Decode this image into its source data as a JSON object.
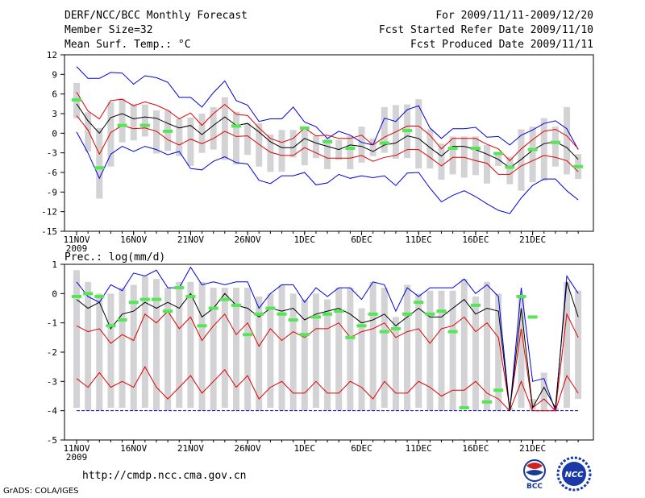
{
  "header": {
    "title": "DERF/NCC/BCC Monthly Forecast",
    "member_size": "Member Size=32",
    "variable": "Mean Surf. Temp.: °C",
    "period": "For 2009/11/11-2009/12/20",
    "started": "Fcst Started Refer Date 2009/11/10",
    "produced": "Fcst Produced Date 2009/11/11"
  },
  "footer": {
    "url": "http://cmdp.ncc.cma.gov.cn",
    "grads": "GrADS: COLA/IGES",
    "logo_bcc": "BCC",
    "logo_ncc": "NCC"
  },
  "colors": {
    "box": "#d3d3d5",
    "mean": "#000000",
    "envelope": "#0000e0",
    "spread": "#e00000",
    "obs": "#55e655",
    "floor": "#0000e0"
  },
  "chart_data": [
    {
      "type": "line",
      "title": "Mean Surf. Temp.: °C",
      "x_labels": [
        "11NOV",
        "16NOV",
        "21NOV",
        "26NOV",
        "1DEC",
        "6DEC",
        "11DEC",
        "16DEC",
        "21DEC"
      ],
      "x_sublabel": "2009",
      "ylim": [
        -15,
        12
      ],
      "y_ticks": [
        -15,
        -12,
        -9,
        -6,
        -3,
        0,
        3,
        6,
        9,
        12
      ],
      "series": [
        {
          "name": "ensemble_mean",
          "values": [
            4.5,
            1.9,
            0.0,
            2.4,
            3.0,
            2.2,
            2.5,
            2.3,
            1.5,
            0.8,
            1.2,
            -0.2,
            1.2,
            2.5,
            1.2,
            1.5,
            0.2,
            -1.3,
            -2.2,
            -2.2,
            -0.8,
            -1.5,
            -2.0,
            -2.5,
            -1.8,
            -2.0,
            -2.8,
            -1.8,
            -1.5,
            -0.4,
            -0.8,
            -2.2,
            -3.5,
            -2.0,
            -2.0,
            -2.5,
            -3.2,
            -4.0,
            -5.3,
            -4.0,
            -2.6,
            -1.6,
            -1.3,
            -2.2,
            -4.0
          ]
        },
        {
          "name": "upper_envelope",
          "values": [
            10.2,
            8.4,
            8.4,
            9.3,
            9.2,
            7.5,
            8.8,
            8.5,
            7.8,
            5.5,
            5.5,
            4.0,
            6.2,
            8.0,
            5.0,
            4.3,
            1.8,
            2.2,
            2.2,
            4.0,
            1.7,
            1.0,
            -0.8,
            0.3,
            -0.3,
            -1.4,
            -1.8,
            2.3,
            1.8,
            3.6,
            4.2,
            0.8,
            -0.8,
            0.7,
            0.7,
            0.9,
            -0.6,
            -0.5,
            -1.8,
            -0.3,
            0.5,
            1.5,
            1.9,
            0.7,
            -2.5
          ]
        },
        {
          "name": "lower_envelope",
          "values": [
            0.2,
            -3.0,
            -6.9,
            -3.2,
            -2.0,
            -2.8,
            -2.0,
            -2.5,
            -3.3,
            -2.8,
            -5.4,
            -5.6,
            -4.3,
            -3.6,
            -4.5,
            -4.7,
            -7.2,
            -7.7,
            -6.5,
            -6.5,
            -6.0,
            -7.9,
            -7.6,
            -6.3,
            -6.9,
            -6.5,
            -6.8,
            -6.5,
            -8.0,
            -6.1,
            -6.0,
            -8.4,
            -10.5,
            -9.5,
            -8.8,
            -9.7,
            -10.8,
            -11.8,
            -12.3,
            -9.9,
            -8.0,
            -7.0,
            -7.0,
            -8.8,
            -10.2
          ]
        },
        {
          "name": "upper_spread",
          "values": [
            6.3,
            3.4,
            2.2,
            5.0,
            5.2,
            4.2,
            4.8,
            4.3,
            3.5,
            2.2,
            3.1,
            1.2,
            3.0,
            4.4,
            2.9,
            2.7,
            0.8,
            -0.8,
            -1.4,
            -0.8,
            0.8,
            -0.4,
            -0.3,
            -0.8,
            -0.8,
            -0.3,
            -1.8,
            -0.6,
            0.2,
            1.1,
            1.1,
            -0.3,
            -2.4,
            -0.8,
            -0.8,
            -0.8,
            -1.7,
            -2.4,
            -4.2,
            -2.4,
            -1.0,
            0.3,
            0.6,
            -0.4,
            -2.4
          ]
        },
        {
          "name": "lower_spread",
          "values": [
            2.7,
            0.5,
            -3.2,
            0.1,
            1.2,
            0.7,
            0.8,
            0.3,
            -1.0,
            -1.8,
            -0.9,
            -1.6,
            -0.8,
            0.3,
            -0.5,
            -0.4,
            -1.7,
            -2.9,
            -3.4,
            -3.4,
            -2.2,
            -3.0,
            -3.8,
            -3.8,
            -3.8,
            -3.4,
            -4.3,
            -3.7,
            -3.4,
            -2.5,
            -2.5,
            -3.7,
            -5.0,
            -3.7,
            -3.7,
            -4.2,
            -4.6,
            -6.3,
            -6.3,
            -5.0,
            -4.2,
            -3.4,
            -3.7,
            -4.2,
            -5.9
          ]
        },
        {
          "name": "box_top",
          "values": [
            7.7,
            3.2,
            0.8,
            4.8,
            5.3,
            4.5,
            4.4,
            3.5,
            3.5,
            2.2,
            2.4,
            3.0,
            4.0,
            5.5,
            3.3,
            1.6,
            1.5,
            -0.2,
            0.5,
            0.5,
            0.8,
            -0.4,
            -0.8,
            -1.0,
            -0.4,
            1.0,
            -0.8,
            4.0,
            4.3,
            4.4,
            5.2,
            0.6,
            -1.6,
            -0.5,
            -0.5,
            -0.5,
            -1.8,
            -3.1,
            -3.6,
            0.6,
            1.0,
            2.3,
            1.0,
            4.0,
            -3.2
          ]
        },
        {
          "name": "box_bottom",
          "values": [
            2.3,
            -2.8,
            -10.0,
            -5.1,
            -1.4,
            -1.1,
            -0.5,
            -3.1,
            -2.7,
            -3.5,
            -5.0,
            -3.0,
            -2.5,
            -4.1,
            -4.8,
            -3.3,
            -5.1,
            -5.9,
            -5.9,
            -3.7,
            -4.9,
            -3.8,
            -5.5,
            -4.1,
            -5.5,
            -4.5,
            -3.5,
            -3.0,
            -3.9,
            -3.8,
            -5.4,
            -5.4,
            -7.1,
            -6.3,
            -6.8,
            -6.4,
            -7.7,
            -5.0,
            -7.8,
            -8.8,
            -7.5,
            -7.3,
            -5.1,
            -6.3,
            -7.0
          ]
        },
        {
          "name": "observed",
          "values": [
            5.1,
            null,
            -5.3,
            null,
            1.2,
            null,
            1.2,
            null,
            0.3,
            null,
            null,
            null,
            null,
            null,
            1.1,
            null,
            null,
            null,
            null,
            null,
            0.8,
            null,
            -1.3,
            null,
            -2.3,
            null,
            null,
            -1.5,
            null,
            0.4,
            null,
            null,
            null,
            -2.3,
            null,
            -2.3,
            null,
            -3.1,
            -5.2,
            null,
            -2.5,
            null,
            -1.4,
            null,
            -5.1
          ]
        }
      ]
    },
    {
      "type": "line",
      "title": "Prec.: log(mm/d)",
      "x_labels": [
        "11NOV",
        "16NOV",
        "21NOV",
        "26NOV",
        "1DEC",
        "6DEC",
        "11DEC",
        "16DEC",
        "21DEC"
      ],
      "x_sublabel": "2009",
      "ylim": [
        -5,
        1
      ],
      "y_ticks": [
        -5,
        -4,
        -3,
        -2,
        -1,
        0,
        1
      ],
      "series": [
        {
          "name": "ensemble_mean",
          "values": [
            -0.2,
            -0.5,
            -0.3,
            -1.2,
            -0.7,
            -0.6,
            -0.3,
            -0.5,
            -0.3,
            -0.5,
            0.0,
            -0.8,
            -0.5,
            0.0,
            -0.4,
            -0.5,
            -0.8,
            -0.5,
            -0.6,
            -0.5,
            -0.9,
            -0.7,
            -0.6,
            -0.5,
            -0.7,
            -1.0,
            -0.9,
            -0.7,
            -1.1,
            -0.8,
            -0.5,
            -0.8,
            -0.8,
            -0.5,
            -0.2,
            -0.7,
            -0.5,
            -0.6,
            -4.0,
            -0.5,
            -3.9,
            -3.2,
            -3.9,
            0.4,
            -0.8
          ]
        },
        {
          "name": "upper_envelope",
          "values": [
            0.4,
            -0.1,
            -0.3,
            0.3,
            0.1,
            0.7,
            0.6,
            0.8,
            0.2,
            0.2,
            0.9,
            0.3,
            0.4,
            0.3,
            0.4,
            0.4,
            -0.5,
            0.0,
            0.3,
            0.3,
            -0.3,
            0.2,
            -0.1,
            0.2,
            0.2,
            -0.2,
            0.4,
            0.3,
            -0.6,
            0.2,
            -0.1,
            0.2,
            0.2,
            0.2,
            0.5,
            0.0,
            0.3,
            -0.1,
            -4.0,
            0.2,
            -3.0,
            -2.9,
            -4.0,
            0.6,
            0.0
          ]
        },
        {
          "name": "upper_spread",
          "values": [
            -1.1,
            -1.3,
            -1.2,
            -1.7,
            -1.4,
            -1.6,
            -0.7,
            -1.0,
            -0.6,
            -1.2,
            -0.8,
            -1.6,
            -1.1,
            -0.7,
            -1.4,
            -1.0,
            -1.8,
            -1.2,
            -1.6,
            -1.3,
            -1.5,
            -1.2,
            -1.2,
            -1.0,
            -1.5,
            -1.3,
            -1.2,
            -1.0,
            -1.5,
            -1.3,
            -1.2,
            -1.7,
            -1.2,
            -1.1,
            -0.8,
            -1.3,
            -1.0,
            -1.5,
            -3.9,
            -1.2,
            -3.9,
            -3.6,
            -4.0,
            -0.7,
            -1.5
          ]
        },
        {
          "name": "lower_spread",
          "values": [
            -2.9,
            -3.2,
            -2.7,
            -3.2,
            -3.0,
            -3.2,
            -2.5,
            -3.2,
            -3.6,
            -3.2,
            -2.8,
            -3.4,
            -3.0,
            -2.6,
            -3.2,
            -2.8,
            -3.6,
            -3.2,
            -3.0,
            -3.4,
            -3.4,
            -3.0,
            -3.4,
            -3.4,
            -3.0,
            -3.2,
            -3.6,
            -3.0,
            -3.4,
            -3.4,
            -3.0,
            -3.2,
            -3.5,
            -3.3,
            -3.3,
            -3.0,
            -3.4,
            -3.6,
            -4.0,
            -3.0,
            -4.0,
            -4.0,
            -4.0,
            -2.8,
            -3.4
          ]
        },
        {
          "name": "box_top",
          "values": [
            0.8,
            0.4,
            0.0,
            0.0,
            0.2,
            0.3,
            0.6,
            0.5,
            0.2,
            0.4,
            0.4,
            0.4,
            0.2,
            0.2,
            0.2,
            0.2,
            -0.1,
            0.0,
            0.3,
            0.0,
            -0.2,
            0.0,
            -0.2,
            0.2,
            0.2,
            -0.5,
            0.4,
            0.2,
            -0.8,
            0.3,
            0.0,
            0.1,
            0.1,
            0.1,
            0.5,
            -0.1,
            0.4,
            0.0,
            -3.9,
            -0.1,
            -3.6,
            -2.7,
            -3.9,
            0.4,
            0.1
          ]
        },
        {
          "name": "box_bottom",
          "values": [
            -3.9,
            -4.0,
            -4.0,
            -3.9,
            -3.9,
            -4.0,
            -3.9,
            -4.0,
            -4.0,
            -3.9,
            -3.9,
            -4.0,
            -4.0,
            -3.9,
            -4.0,
            -4.0,
            -4.0,
            -3.9,
            -4.0,
            -4.0,
            -4.0,
            -3.9,
            -4.0,
            -4.0,
            -4.0,
            -4.0,
            -4.0,
            -3.9,
            -4.0,
            -4.0,
            -3.9,
            -4.0,
            -4.0,
            -4.0,
            -3.9,
            -4.0,
            -4.0,
            -4.0,
            -4.0,
            -3.9,
            -4.0,
            -4.0,
            -4.0,
            -3.9,
            -3.6
          ]
        },
        {
          "name": "observed",
          "values": [
            -0.1,
            0.0,
            -0.1,
            -1.1,
            -0.9,
            -0.3,
            -0.2,
            -0.2,
            -0.6,
            0.2,
            -0.1,
            -1.1,
            -0.5,
            -0.2,
            -0.4,
            -1.4,
            -0.7,
            -0.5,
            -0.7,
            -0.9,
            -1.4,
            -0.8,
            -0.7,
            -0.6,
            -1.5,
            -1.1,
            -0.7,
            -1.3,
            -1.2,
            -0.7,
            -0.3,
            -0.7,
            -0.6,
            -1.3,
            -3.9,
            -0.4,
            -3.7,
            -3.3,
            null,
            -0.1,
            -0.8,
            null,
            null,
            null,
            null
          ]
        },
        {
          "name": "floor_line",
          "values": [
            -4,
            -4
          ]
        }
      ]
    }
  ]
}
